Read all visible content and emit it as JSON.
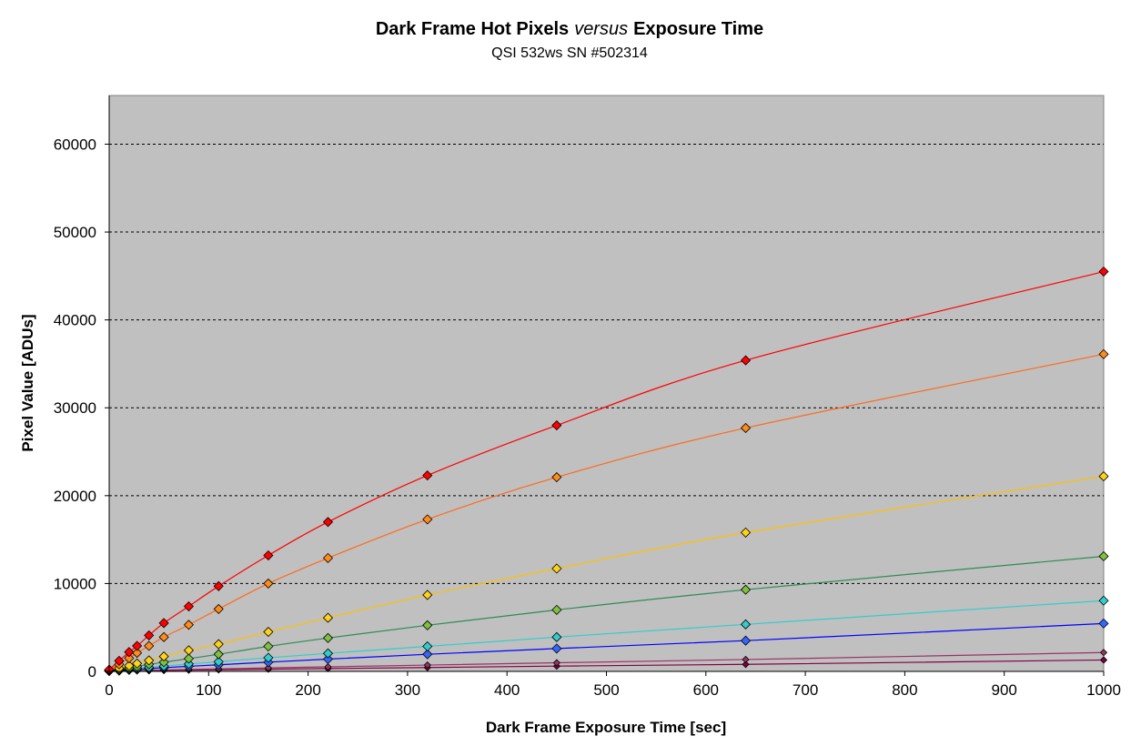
{
  "chart_data": {
    "type": "scatter",
    "title_main": "Dark Frame Hot Pixels",
    "title_italic": "versus",
    "title_end": "Exposure Time",
    "subtitle": "QSI 532ws SN #502314",
    "xlabel": "Dark Frame Exposure Time [sec]",
    "ylabel": "Pixel Value [ADUs]",
    "xlim": [
      0,
      1000
    ],
    "ylim": [
      0,
      65536
    ],
    "x_ticks": [
      0,
      100,
      200,
      300,
      400,
      500,
      600,
      700,
      800,
      900,
      1000
    ],
    "y_ticks": [
      0,
      10000,
      20000,
      30000,
      40000,
      50000,
      60000
    ],
    "x_tick_labels": [
      "0",
      "100",
      "200",
      "300",
      "400",
      "500",
      "600",
      "700",
      "800",
      "900",
      "1000"
    ],
    "y_tick_labels": [
      "0",
      "10000",
      "20000",
      "30000",
      "40000",
      "50000",
      "60000"
    ],
    "grid": "horizontal dashed",
    "plot_background": "#c0c0c0",
    "legend": "none",
    "x": [
      0,
      10,
      20,
      28,
      40,
      55,
      80,
      110,
      160,
      220,
      320,
      450,
      640,
      1000
    ],
    "series": [
      {
        "color": "#ff0000",
        "line_color": "#ff0000",
        "values": [
          200,
          1200,
          2200,
          2900,
          4100,
          5500,
          7400,
          9700,
          13200,
          17000,
          22300,
          28000,
          35400,
          45500
        ]
      },
      {
        "color": "#ff8c1a",
        "line_color": "#ff6a1a",
        "values": [
          150,
          800,
          1500,
          2100,
          2900,
          3900,
          5300,
          7100,
          10000,
          12900,
          17300,
          22100,
          27700,
          36100
        ]
      },
      {
        "color": "#ffd21a",
        "line_color": "#ffc000",
        "values": [
          100,
          350,
          650,
          900,
          1250,
          1700,
          2400,
          3100,
          4500,
          6100,
          8700,
          11700,
          15800,
          22200
        ]
      },
      {
        "color": "#80c040",
        "line_color": "#2e8b57",
        "values": [
          80,
          200,
          400,
          550,
          800,
          1050,
          1450,
          1950,
          2850,
          3800,
          5250,
          7000,
          9300,
          13100
        ]
      },
      {
        "color": "#33cccc",
        "line_color": "#33cccc",
        "values": [
          60,
          130,
          250,
          330,
          450,
          600,
          850,
          1100,
          1550,
          2050,
          2850,
          3900,
          5350,
          8050
        ]
      },
      {
        "color": "#3366ff",
        "line_color": "#0000ff",
        "values": [
          40,
          90,
          170,
          230,
          320,
          420,
          580,
          750,
          1050,
          1400,
          1950,
          2600,
          3500,
          5450
        ]
      },
      {
        "color": "#993366",
        "line_color": "#993366",
        "values": [
          20,
          40,
          70,
          90,
          120,
          160,
          220,
          290,
          400,
          520,
          720,
          980,
          1350,
          2150
        ]
      },
      {
        "color": "#800040",
        "line_color": "#800040",
        "values": [
          10,
          20,
          40,
          55,
          75,
          100,
          140,
          180,
          250,
          320,
          440,
          600,
          800,
          1300
        ]
      }
    ]
  }
}
